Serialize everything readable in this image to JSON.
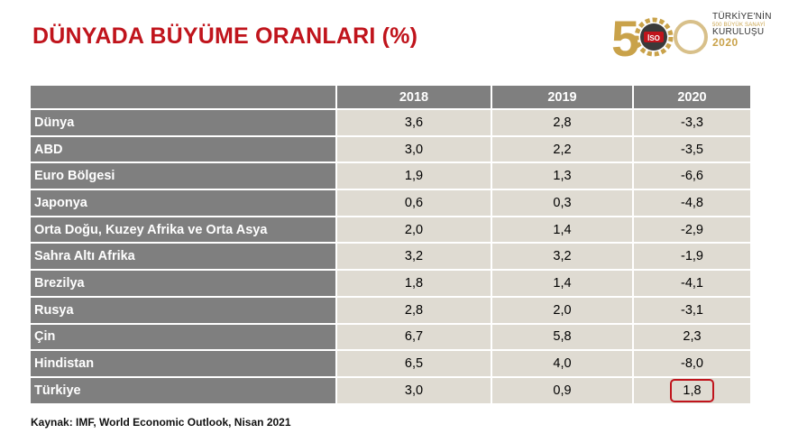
{
  "title": "DÜNYADA BÜYÜME ORANLARI (%)",
  "logo": {
    "number": "500",
    "badge": "İSO",
    "line1": "TÜRKİYE'NİN",
    "line2": "500 BÜYÜK SANAYİ",
    "line3": "KURULUŞU",
    "line4": "2020",
    "colors": {
      "gold": "#c9a24a",
      "red": "#c0141c"
    }
  },
  "table": {
    "headers": [
      "",
      "2018",
      "2019",
      "2020"
    ],
    "rows": [
      {
        "name": "Dünya",
        "v2018": "3,6",
        "v2019": "2,8",
        "v2020": "-3,3"
      },
      {
        "name": "ABD",
        "v2018": "3,0",
        "v2019": "2,2",
        "v2020": "-3,5"
      },
      {
        "name": "Euro Bölgesi",
        "v2018": "1,9",
        "v2019": "1,3",
        "v2020": "-6,6"
      },
      {
        "name": "Japonya",
        "v2018": "0,6",
        "v2019": "0,3",
        "v2020": "-4,8"
      },
      {
        "name": "Orta Doğu, Kuzey Afrika ve Orta Asya",
        "v2018": "2,0",
        "v2019": "1,4",
        "v2020": "-2,9"
      },
      {
        "name": "Sahra Altı Afrika",
        "v2018": "3,2",
        "v2019": "3,2",
        "v2020": "-1,9"
      },
      {
        "name": "Brezilya",
        "v2018": "1,8",
        "v2019": "1,4",
        "v2020": "-4,1"
      },
      {
        "name": "Rusya",
        "v2018": "2,8",
        "v2019": "2,0",
        "v2020": "-3,1"
      },
      {
        "name": "Çin",
        "v2018": "6,7",
        "v2019": "5,8",
        "v2020": "2,3"
      },
      {
        "name": "Hindistan",
        "v2018": "6,5",
        "v2019": "4,0",
        "v2020": "-8,0"
      },
      {
        "name": "Türkiye",
        "v2018": "3,0",
        "v2019": "0,9",
        "v2020": "1,8",
        "highlight": true
      }
    ],
    "colors": {
      "header_bg": "#7f7f7f",
      "cell_bg": "#dfdbd2",
      "highlight_border": "#c0141c"
    }
  },
  "source": "Kaynak: IMF, World Economic Outlook, Nisan 2021"
}
